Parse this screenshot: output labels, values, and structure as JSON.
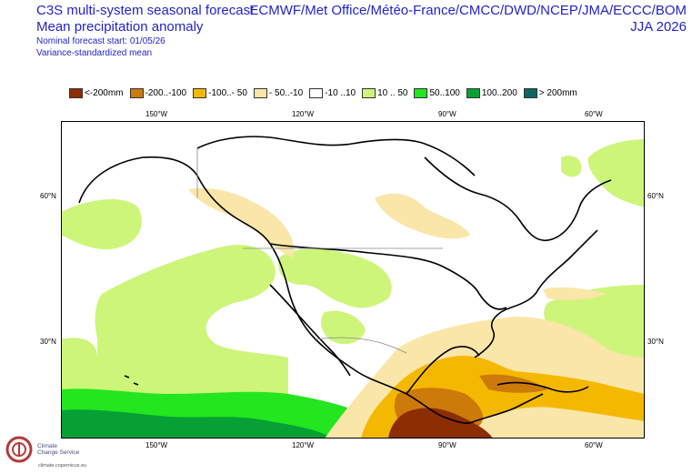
{
  "header": {
    "title_line1": "C3S multi-system seasonal forecast",
    "title_line2": "Mean precipitation anomaly",
    "start_label": "Nominal forecast start: 01/05/26",
    "method_label": "Variance-standardized mean",
    "centres": "ECMWF/Met Office/Météo-France/CMCC/DWD/NCEP/JMA/ECCC/BOM",
    "season": "JJA 2026"
  },
  "legend": [
    {
      "label": "<-200mm",
      "color": "#8c2d04"
    },
    {
      "label": "-200..-100",
      "color": "#cc7a0a"
    },
    {
      "label": "-100..- 50",
      "color": "#f5b800"
    },
    {
      "label": "- 50..-10",
      "color": "#fae6a8"
    },
    {
      "label": "-10 ..10",
      "color": "#ffffff"
    },
    {
      "label": "10 .. 50",
      "color": "#cdf57a"
    },
    {
      "label": "50..100",
      "color": "#23e61e"
    },
    {
      "label": "100..200",
      "color": "#06a034"
    },
    {
      "label": "> 200mm",
      "color": "#0b6760"
    }
  ],
  "axes": {
    "top": [
      "150°W",
      "120°W",
      "90°W",
      "60°W"
    ],
    "bottom": [
      "150°W",
      "120°W",
      "90°W",
      "60°W"
    ],
    "left": [
      "60°N",
      "30°N"
    ],
    "right": [
      "60°N",
      "30°N"
    ]
  },
  "logo": {
    "line1": "Climate",
    "line2": "Change Service",
    "url": "climate.copernicus.eu"
  }
}
